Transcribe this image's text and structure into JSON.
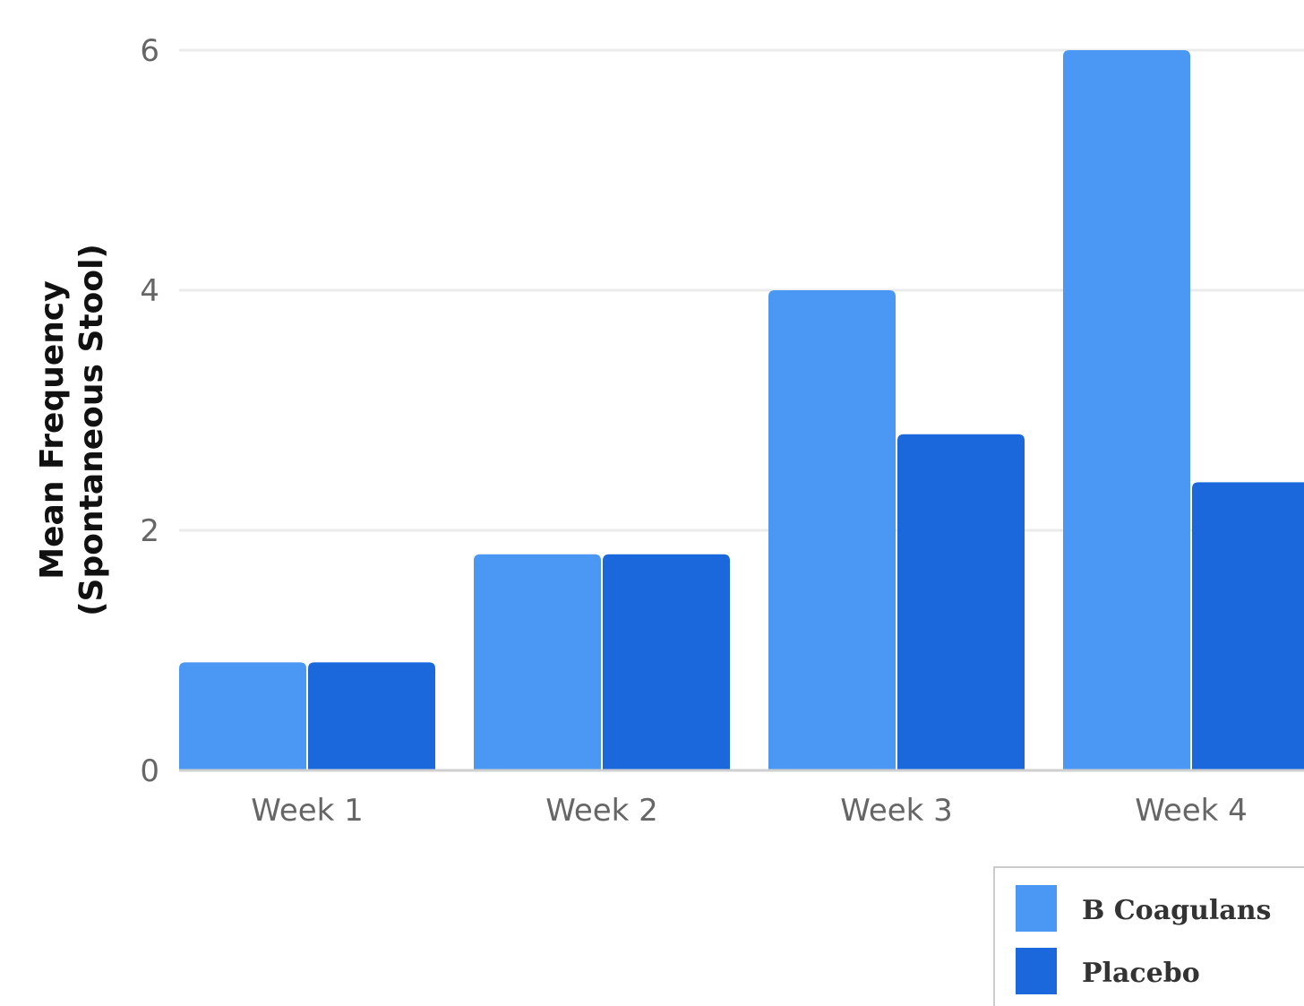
{
  "chart_data": {
    "type": "bar",
    "categories": [
      "Week 1",
      "Week 2",
      "Week 3",
      "Week 4"
    ],
    "series": [
      {
        "name": "B Coagulans",
        "values": [
          0.9,
          1.8,
          4.0,
          6.0
        ],
        "color": "#4a98f3"
      },
      {
        "name": "Placebo",
        "values": [
          0.9,
          1.8,
          2.8,
          2.4
        ],
        "color": "#1a68dc"
      }
    ],
    "title": "",
    "xlabel": "",
    "ylabel_lines": [
      "Mean Frequency",
      "(Spontaneous Stool)"
    ],
    "ylim": [
      0,
      6
    ],
    "yticks": [
      "0",
      "2",
      "4",
      "6"
    ],
    "grid": true,
    "legend_position": "bottom-right"
  }
}
